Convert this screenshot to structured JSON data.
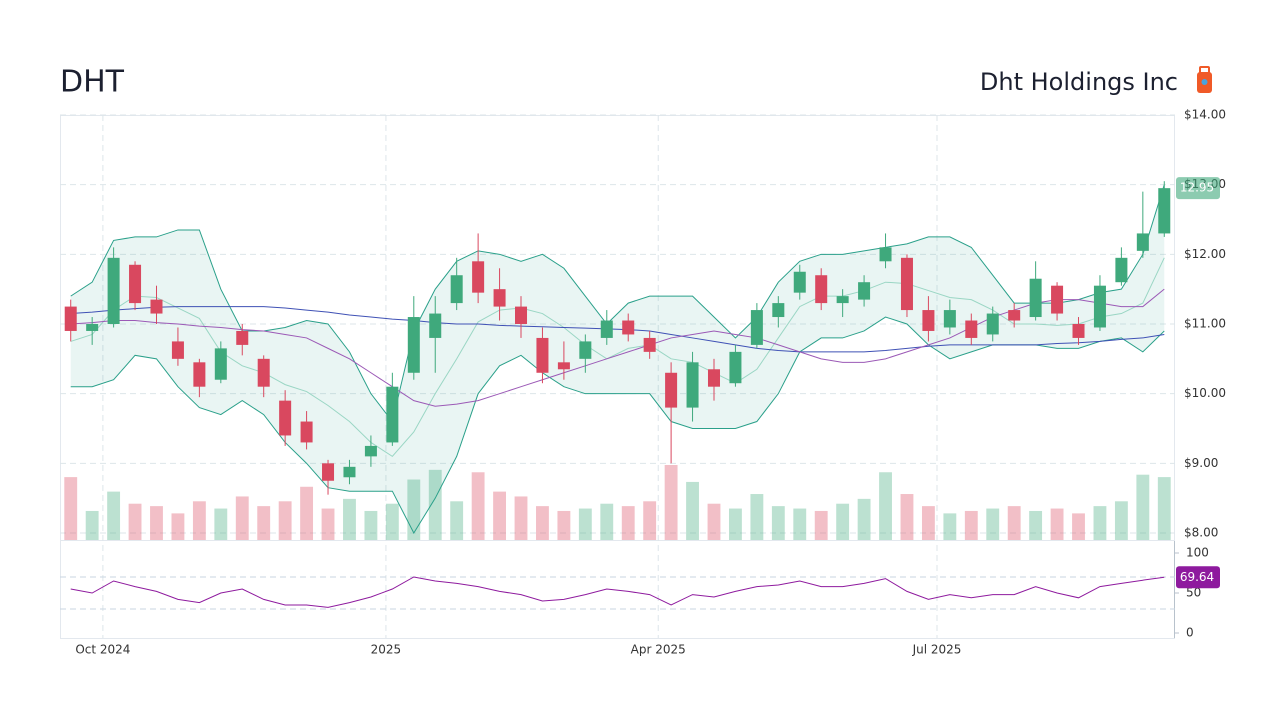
{
  "chart_data": {
    "type": "candlestick",
    "title": "DHT",
    "subtitle": "Dht Holdings Inc",
    "xlim": [
      -0.5,
      51.5
    ],
    "xticks": [
      {
        "value": 1.5,
        "label": "Oct 2024"
      },
      {
        "value": 14.7,
        "label": "2025"
      },
      {
        "value": 27.4,
        "label": "Apr 2025"
      },
      {
        "value": 40.4,
        "label": "Jul 2025"
      }
    ],
    "ylim": [
      8,
      14
    ],
    "yticks": [
      {
        "value": 8,
        "label": "$8.00"
      },
      {
        "value": 9,
        "label": "$9.00"
      },
      {
        "value": 10,
        "label": "$10.00"
      },
      {
        "value": 11,
        "label": "$11.00"
      },
      {
        "value": 12,
        "label": "$12.00"
      },
      {
        "value": 13,
        "label": "$13.00"
      },
      {
        "value": 14,
        "label": "$14.00"
      }
    ],
    "grid": true,
    "open": [
      11.25,
      10.9,
      11.0,
      11.85,
      11.35,
      10.75,
      10.45,
      10.2,
      10.9,
      10.5,
      9.9,
      9.6,
      9.0,
      8.8,
      9.1,
      9.3,
      10.3,
      10.8,
      11.3,
      11.9,
      11.5,
      11.25,
      10.8,
      10.45,
      10.5,
      10.8,
      11.05,
      10.8,
      10.3,
      9.8,
      10.35,
      10.15,
      10.7,
      11.1,
      11.45,
      11.7,
      11.3,
      11.35,
      11.9,
      11.95,
      11.2,
      10.95,
      11.05,
      10.85,
      11.2,
      11.1,
      11.55,
      11.0,
      10.95,
      11.6,
      12.05,
      12.3
    ],
    "high": [
      11.35,
      11.1,
      12.1,
      11.9,
      11.55,
      10.95,
      10.5,
      10.75,
      11.0,
      10.55,
      10.05,
      9.75,
      9.05,
      9.05,
      9.4,
      10.3,
      11.4,
      11.4,
      11.95,
      12.3,
      11.8,
      11.4,
      10.95,
      10.75,
      10.85,
      11.2,
      11.15,
      10.9,
      10.45,
      10.6,
      10.5,
      10.7,
      11.3,
      11.4,
      11.85,
      11.8,
      11.5,
      11.7,
      12.3,
      12.0,
      11.4,
      11.35,
      11.15,
      11.25,
      11.3,
      11.9,
      11.6,
      11.1,
      11.7,
      12.1,
      12.9,
      13.05
    ],
    "low": [
      10.75,
      10.7,
      10.95,
      11.2,
      11.0,
      10.4,
      9.95,
      10.15,
      10.55,
      9.95,
      9.25,
      9.2,
      8.55,
      8.7,
      8.95,
      9.25,
      10.2,
      10.3,
      11.2,
      11.3,
      11.05,
      10.8,
      10.15,
      10.2,
      10.3,
      10.7,
      10.75,
      10.5,
      9.0,
      9.6,
      9.9,
      10.1,
      10.65,
      10.95,
      11.35,
      11.2,
      11.1,
      11.25,
      11.8,
      11.1,
      10.75,
      10.85,
      10.7,
      10.75,
      10.95,
      11.05,
      11.05,
      10.7,
      10.9,
      11.55,
      11.95,
      12.25
    ],
    "close": [
      10.9,
      11.0,
      11.95,
      11.3,
      11.15,
      10.5,
      10.1,
      10.65,
      10.7,
      10.1,
      9.4,
      9.3,
      8.75,
      8.95,
      9.25,
      10.1,
      11.1,
      11.15,
      11.7,
      11.45,
      11.25,
      11.0,
      10.3,
      10.35,
      10.75,
      11.05,
      10.85,
      10.6,
      9.8,
      10.45,
      10.1,
      10.6,
      11.2,
      11.3,
      11.75,
      11.3,
      11.4,
      11.6,
      12.1,
      11.2,
      10.9,
      11.2,
      10.8,
      11.15,
      11.05,
      11.65,
      11.15,
      10.8,
      11.55,
      11.95,
      12.3,
      12.95
    ],
    "volume": [
      2600000,
      1200000,
      2000000,
      1500000,
      1400000,
      1100000,
      1600000,
      1300000,
      1800000,
      1400000,
      1600000,
      2200000,
      1300000,
      1700000,
      1200000,
      1500000,
      2500000,
      2900000,
      1600000,
      2800000,
      2000000,
      1800000,
      1400000,
      1200000,
      1300000,
      1500000,
      1400000,
      1600000,
      3100000,
      2400000,
      1500000,
      1300000,
      1900000,
      1400000,
      1300000,
      1200000,
      1500000,
      1700000,
      2800000,
      1900000,
      1400000,
      1100000,
      1200000,
      1300000,
      1400000,
      1200000,
      1300000,
      1100000,
      1400000,
      1600000,
      2700000,
      2600000
    ],
    "upper_band": [
      11.4,
      11.6,
      12.2,
      12.25,
      12.25,
      12.35,
      12.35,
      11.5,
      10.9,
      10.9,
      10.95,
      11.05,
      11.0,
      10.6,
      10.0,
      9.6,
      10.9,
      11.5,
      11.9,
      12.05,
      12.0,
      11.9,
      12.0,
      11.8,
      11.4,
      11.0,
      11.3,
      11.4,
      11.4,
      11.4,
      11.1,
      10.8,
      11.1,
      11.6,
      11.9,
      12.0,
      12.0,
      12.05,
      12.1,
      12.15,
      12.25,
      12.25,
      12.1,
      11.7,
      11.3,
      11.3,
      11.3,
      11.35,
      11.45,
      11.5,
      12.0,
      13.0
    ],
    "middle_band": [
      10.75,
      10.85,
      11.2,
      11.4,
      11.38,
      11.23,
      11.08,
      10.6,
      10.4,
      10.3,
      10.13,
      10.03,
      9.83,
      9.6,
      9.3,
      9.1,
      9.45,
      10.0,
      10.5,
      11.03,
      11.2,
      11.23,
      11.15,
      10.95,
      10.7,
      10.5,
      10.65,
      10.7,
      10.5,
      10.45,
      10.3,
      10.15,
      10.35,
      10.8,
      11.25,
      11.4,
      11.4,
      11.48,
      11.6,
      11.58,
      11.48,
      11.38,
      11.35,
      11.2,
      11.0,
      11.0,
      10.98,
      11.0,
      11.1,
      11.15,
      11.3,
      11.95
    ],
    "lower_band": [
      10.1,
      10.1,
      10.2,
      10.55,
      10.5,
      10.1,
      9.8,
      9.7,
      9.9,
      9.7,
      9.3,
      9.0,
      8.65,
      8.6,
      8.6,
      8.6,
      8.0,
      8.5,
      9.1,
      10.0,
      10.4,
      10.55,
      10.3,
      10.1,
      10.0,
      10.0,
      10.0,
      10.0,
      9.6,
      9.5,
      9.5,
      9.5,
      9.6,
      10.0,
      10.6,
      10.8,
      10.8,
      10.9,
      11.1,
      11.0,
      10.7,
      10.5,
      10.6,
      10.7,
      10.7,
      10.7,
      10.65,
      10.65,
      10.75,
      10.8,
      10.6,
      10.9
    ],
    "sma_50": [
      11.0,
      11.02,
      11.05,
      11.05,
      11.02,
      11.0,
      10.97,
      10.95,
      10.92,
      10.9,
      10.85,
      10.8,
      10.65,
      10.5,
      10.3,
      10.1,
      9.9,
      9.82,
      9.85,
      9.9,
      10.0,
      10.1,
      10.2,
      10.3,
      10.4,
      10.5,
      10.6,
      10.7,
      10.8,
      10.85,
      10.9,
      10.85,
      10.8,
      10.7,
      10.6,
      10.5,
      10.45,
      10.45,
      10.5,
      10.6,
      10.7,
      10.8,
      10.95,
      11.1,
      11.2,
      11.3,
      11.35,
      11.35,
      11.3,
      11.25,
      11.25,
      11.5
    ],
    "sma_200": [
      11.15,
      11.17,
      11.2,
      11.22,
      11.24,
      11.25,
      11.25,
      11.25,
      11.25,
      11.25,
      11.23,
      11.2,
      11.17,
      11.13,
      11.1,
      11.07,
      11.05,
      11.02,
      11.0,
      11.0,
      10.98,
      10.97,
      10.96,
      10.95,
      10.94,
      10.93,
      10.92,
      10.9,
      10.85,
      10.8,
      10.75,
      10.7,
      10.65,
      10.62,
      10.6,
      10.6,
      10.6,
      10.6,
      10.62,
      10.65,
      10.68,
      10.7,
      10.7,
      10.7,
      10.7,
      10.7,
      10.72,
      10.73,
      10.75,
      10.78,
      10.8,
      10.85
    ],
    "rsi": [
      55,
      50,
      65,
      58,
      52,
      42,
      38,
      50,
      55,
      42,
      35,
      35,
      32,
      38,
      45,
      55,
      70,
      65,
      62,
      58,
      52,
      48,
      40,
      42,
      48,
      55,
      52,
      48,
      35,
      48,
      45,
      52,
      58,
      60,
      65,
      58,
      58,
      62,
      68,
      52,
      42,
      48,
      44,
      48,
      48,
      58,
      50,
      44,
      58,
      62,
      66,
      69.64
    ],
    "rsi_ylim": [
      0,
      100
    ],
    "rsi_yticks": [
      0,
      50,
      100
    ],
    "rsi_levels": [
      30,
      70
    ],
    "colors": {
      "up": "#3fa97c",
      "down": "#d9485f",
      "band": "#2aa08a",
      "middle": "#9ad6c4",
      "sma_50": "#9b59b6",
      "sma_200": "#3f51b5",
      "rsi": "#8e1a9e"
    }
  }
}
